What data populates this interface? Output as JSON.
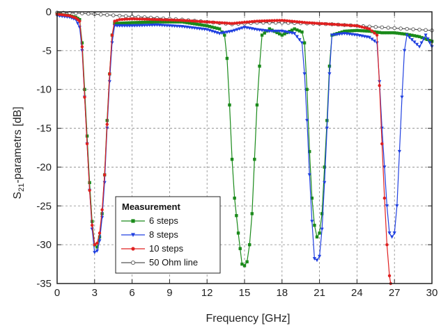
{
  "chart_data": {
    "type": "line",
    "xlabel": "Frequency [GHz]",
    "ylabel_main": "S",
    "ylabel_sub": "21",
    "ylabel_rest": "-parametrs [dB]",
    "xlim": [
      0,
      30
    ],
    "ylim": [
      -35,
      0
    ],
    "xticks": [
      "0",
      "3",
      "6",
      "9",
      "12",
      "15",
      "18",
      "21",
      "24",
      "27",
      "30"
    ],
    "yticks": [
      "0",
      "-5",
      "-10",
      "-15",
      "-20",
      "-25",
      "-30",
      "-35"
    ],
    "grid": true,
    "legend": {
      "title": "Measurement",
      "placement": "bottom-left"
    },
    "series": [
      {
        "name": "6 steps",
        "color": "#1a8a1a",
        "marker": "square",
        "points": [
          [
            0,
            -0.3
          ],
          [
            1,
            -0.5
          ],
          [
            1.5,
            -0.7
          ],
          [
            1.8,
            -1.0
          ],
          [
            2.0,
            -4.0
          ],
          [
            2.2,
            -10.0
          ],
          [
            2.4,
            -16.0
          ],
          [
            2.6,
            -22.0
          ],
          [
            2.8,
            -27.0
          ],
          [
            3.0,
            -30.0
          ],
          [
            3.2,
            -30.3
          ],
          [
            3.4,
            -29.0
          ],
          [
            3.6,
            -26.0
          ],
          [
            3.8,
            -21.0
          ],
          [
            4.0,
            -14.0
          ],
          [
            4.2,
            -8.0
          ],
          [
            4.4,
            -3.0
          ],
          [
            4.6,
            -1.5
          ],
          [
            6,
            -1.4
          ],
          [
            8,
            -1.3
          ],
          [
            10,
            -1.3
          ],
          [
            12,
            -1.8
          ],
          [
            13,
            -2.2
          ],
          [
            13.4,
            -3.0
          ],
          [
            13.6,
            -6.0
          ],
          [
            13.8,
            -12.0
          ],
          [
            14.0,
            -19.0
          ],
          [
            14.2,
            -24.0
          ],
          [
            14.5,
            -28.5
          ],
          [
            14.8,
            -32.5
          ],
          [
            15.0,
            -32.7
          ],
          [
            15.2,
            -32.2
          ],
          [
            15.4,
            -30.0
          ],
          [
            15.6,
            -26.0
          ],
          [
            15.8,
            -19.0
          ],
          [
            16.0,
            -12.0
          ],
          [
            16.2,
            -7.0
          ],
          [
            16.4,
            -3.0
          ],
          [
            17,
            -2.2
          ],
          [
            18,
            -3.0
          ],
          [
            19,
            -2.2
          ],
          [
            19.6,
            -2.6
          ],
          [
            19.8,
            -4.0
          ],
          [
            20.0,
            -10.0
          ],
          [
            20.2,
            -18.0
          ],
          [
            20.4,
            -24.0
          ],
          [
            20.6,
            -27.5
          ],
          [
            20.8,
            -29.0
          ],
          [
            21.0,
            -28.5
          ],
          [
            21.2,
            -26.0
          ],
          [
            21.4,
            -20.0
          ],
          [
            21.6,
            -14.0
          ],
          [
            21.8,
            -7.0
          ],
          [
            22.0,
            -3.0
          ],
          [
            23,
            -2.5
          ],
          [
            24,
            -2.4
          ],
          [
            25,
            -2.5
          ],
          [
            26,
            -2.7
          ],
          [
            27,
            -2.7
          ],
          [
            28,
            -2.9
          ],
          [
            29,
            -3.2
          ],
          [
            30,
            -3.8
          ]
        ]
      },
      {
        "name": "8 steps",
        "color": "#2040e0",
        "marker": "triangle-down",
        "points": [
          [
            0,
            -0.5
          ],
          [
            1,
            -0.7
          ],
          [
            1.5,
            -1.0
          ],
          [
            1.8,
            -2.0
          ],
          [
            2.0,
            -5.0
          ],
          [
            2.2,
            -11.0
          ],
          [
            2.4,
            -17.0
          ],
          [
            2.6,
            -23.0
          ],
          [
            2.8,
            -28.0
          ],
          [
            3.0,
            -31.0
          ],
          [
            3.2,
            -30.8
          ],
          [
            3.4,
            -29.5
          ],
          [
            3.6,
            -26.5
          ],
          [
            3.8,
            -22.0
          ],
          [
            4.0,
            -15.0
          ],
          [
            4.2,
            -9.0
          ],
          [
            4.4,
            -4.0
          ],
          [
            4.6,
            -1.8
          ],
          [
            6,
            -1.8
          ],
          [
            8,
            -1.7
          ],
          [
            10,
            -1.9
          ],
          [
            12,
            -2.3
          ],
          [
            13,
            -2.8
          ],
          [
            14,
            -2.5
          ],
          [
            15,
            -2.0
          ],
          [
            16,
            -2.3
          ],
          [
            17,
            -2.5
          ],
          [
            18,
            -2.5
          ],
          [
            19.0,
            -2.8
          ],
          [
            19.6,
            -4.0
          ],
          [
            19.8,
            -8.0
          ],
          [
            20.0,
            -14.0
          ],
          [
            20.2,
            -21.0
          ],
          [
            20.4,
            -27.0
          ],
          [
            20.6,
            -31.8
          ],
          [
            20.8,
            -32.0
          ],
          [
            21.0,
            -31.5
          ],
          [
            21.2,
            -28.0
          ],
          [
            21.4,
            -22.0
          ],
          [
            21.6,
            -15.0
          ],
          [
            21.8,
            -8.0
          ],
          [
            22.0,
            -3.0
          ],
          [
            23,
            -2.8
          ],
          [
            24,
            -3.0
          ],
          [
            25,
            -3.3
          ],
          [
            25.6,
            -4.0
          ],
          [
            25.8,
            -9.0
          ],
          [
            26.0,
            -15.0
          ],
          [
            26.2,
            -20.0
          ],
          [
            26.4,
            -25.0
          ],
          [
            26.6,
            -28.5
          ],
          [
            26.8,
            -29.0
          ],
          [
            27.0,
            -28.5
          ],
          [
            27.2,
            -25.0
          ],
          [
            27.4,
            -18.0
          ],
          [
            27.6,
            -11.0
          ],
          [
            27.8,
            -5.0
          ],
          [
            28.0,
            -3.0
          ],
          [
            29,
            -4.5
          ],
          [
            29.5,
            -3.0
          ],
          [
            30,
            -4.5
          ]
        ]
      },
      {
        "name": "10 steps",
        "color": "#e02020",
        "marker": "circle",
        "points": [
          [
            0,
            -0.3
          ],
          [
            1,
            -0.5
          ],
          [
            1.5,
            -0.8
          ],
          [
            1.8,
            -1.2
          ],
          [
            2.0,
            -4.5
          ],
          [
            2.2,
            -11.0
          ],
          [
            2.4,
            -17.0
          ],
          [
            2.6,
            -23.0
          ],
          [
            2.8,
            -27.5
          ],
          [
            3.0,
            -30.0
          ],
          [
            3.2,
            -29.8
          ],
          [
            3.4,
            -28.5
          ],
          [
            3.6,
            -25.5
          ],
          [
            3.8,
            -21.0
          ],
          [
            4.0,
            -14.5
          ],
          [
            4.2,
            -8.0
          ],
          [
            4.4,
            -3.0
          ],
          [
            4.6,
            -1.2
          ],
          [
            5,
            -1.0
          ],
          [
            6,
            -0.9
          ],
          [
            8,
            -1.0
          ],
          [
            10,
            -1.1
          ],
          [
            12,
            -1.3
          ],
          [
            14,
            -1.5
          ],
          [
            16,
            -1.2
          ],
          [
            18,
            -1.1
          ],
          [
            20,
            -1.4
          ],
          [
            22,
            -1.6
          ],
          [
            24,
            -1.8
          ],
          [
            25,
            -2.2
          ],
          [
            25.6,
            -3.0
          ],
          [
            25.8,
            -9.5
          ],
          [
            26.0,
            -17.0
          ],
          [
            26.2,
            -24.0
          ],
          [
            26.4,
            -30.0
          ],
          [
            26.6,
            -34.0
          ],
          [
            26.7,
            -35.0
          ]
        ]
      },
      {
        "name": "50 Ohm line",
        "color": "#555555",
        "marker": "open-circle",
        "points": [
          [
            0,
            -0.1
          ],
          [
            2,
            -0.2
          ],
          [
            4,
            -0.4
          ],
          [
            6,
            -0.6
          ],
          [
            8,
            -0.8
          ],
          [
            10,
            -1.0
          ],
          [
            12,
            -1.3
          ],
          [
            14,
            -1.6
          ],
          [
            16,
            -1.4
          ],
          [
            18,
            -1.4
          ],
          [
            20,
            -1.5
          ],
          [
            22,
            -1.6
          ],
          [
            24,
            -1.8
          ],
          [
            26,
            -2.0
          ],
          [
            28,
            -2.2
          ],
          [
            30,
            -2.4
          ]
        ]
      }
    ]
  }
}
